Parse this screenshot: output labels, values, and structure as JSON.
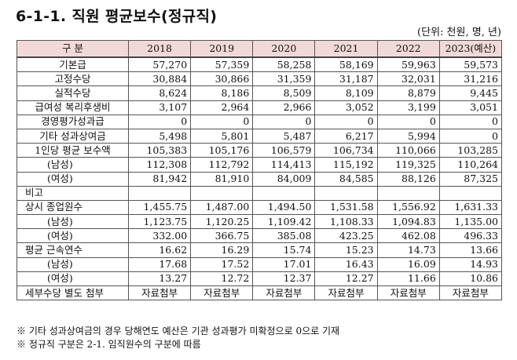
{
  "title": "6-1-1. 직원 평균보수(정규직)",
  "unit": "(단위: 천원, 명, 년)",
  "header": {
    "label": "구  분",
    "years": [
      "2018",
      "2019",
      "2020",
      "2021",
      "2022",
      "2023(예산)"
    ]
  },
  "rows": [
    {
      "label": "기본급",
      "style": "center",
      "values": [
        "57,270",
        "57,359",
        "58,258",
        "58,169",
        "59,963",
        "59,573"
      ]
    },
    {
      "label": "고정수당",
      "style": "center",
      "values": [
        "30,884",
        "30,866",
        "31,359",
        "31,187",
        "32,031",
        "31,216"
      ]
    },
    {
      "label": "실적수당",
      "style": "center",
      "values": [
        "8,624",
        "8,186",
        "8,509",
        "8,109",
        "8,879",
        "9,445"
      ]
    },
    {
      "label": "급여성 복리후생비",
      "style": "center",
      "values": [
        "3,107",
        "2,964",
        "2,966",
        "3,052",
        "3,199",
        "3,051"
      ]
    },
    {
      "label": "경영평가성과급",
      "style": "center",
      "values": [
        "0",
        "0",
        "0",
        "0",
        "0",
        "0"
      ]
    },
    {
      "label": "기타 성과상여금",
      "style": "center",
      "values": [
        "5,498",
        "5,801",
        "5,487",
        "6,217",
        "5,994",
        "0"
      ]
    },
    {
      "label": "1인당 평균 보수액",
      "style": "center",
      "values": [
        "105,383",
        "105,176",
        "106,579",
        "106,734",
        "110,066",
        "103,285"
      ]
    },
    {
      "label": "(남성)",
      "style": "sub",
      "values": [
        "112,308",
        "112,792",
        "114,413",
        "115,192",
        "119,325",
        "110,264"
      ]
    },
    {
      "label": "(여성)",
      "style": "sub",
      "values": [
        "81,942",
        "81,910",
        "84,009",
        "84,585",
        "88,126",
        "87,325"
      ]
    },
    {
      "label": "비고",
      "style": "plain",
      "values": [
        "",
        "",
        "",
        "",
        "",
        ""
      ]
    },
    {
      "label": "상시 종업원수",
      "style": "plain",
      "values": [
        "1,455.75",
        "1,487.00",
        "1,494.50",
        "1,531.58",
        "1,556.92",
        "1,631.33"
      ]
    },
    {
      "label": "(남성)",
      "style": "sub",
      "values": [
        "1,123.75",
        "1,120.25",
        "1,109.42",
        "1,108.33",
        "1,094.83",
        "1,135.00"
      ]
    },
    {
      "label": "(여성)",
      "style": "sub",
      "values": [
        "332.00",
        "366.75",
        "385.08",
        "423.25",
        "462.08",
        "496.33"
      ]
    },
    {
      "label": "평균 근속연수",
      "style": "plain",
      "values": [
        "16.62",
        "16.29",
        "15.74",
        "15.23",
        "14.73",
        "13.66"
      ]
    },
    {
      "label": "(남성)",
      "style": "sub",
      "values": [
        "17.68",
        "17.52",
        "17.01",
        "16.43",
        "16.09",
        "14.93"
      ]
    },
    {
      "label": "(여성)",
      "style": "sub",
      "values": [
        "13.27",
        "12.72",
        "12.37",
        "12.27",
        "11.66",
        "10.86"
      ]
    },
    {
      "label": "세부수당 별도 첨부",
      "style": "plain",
      "center_values": true,
      "values": [
        "자료첨부",
        "자료첨부",
        "자료첨부",
        "자료첨부",
        "자료첨부",
        "자료첨부"
      ]
    }
  ],
  "notes": [
    "※ 기타 성과상여금의 경우 당해연도 예산은 기관 성과평가 미확정으로 0으로 기재",
    "※ 정규직 구분은 2-1. 임직원수의 구분에 따름"
  ]
}
